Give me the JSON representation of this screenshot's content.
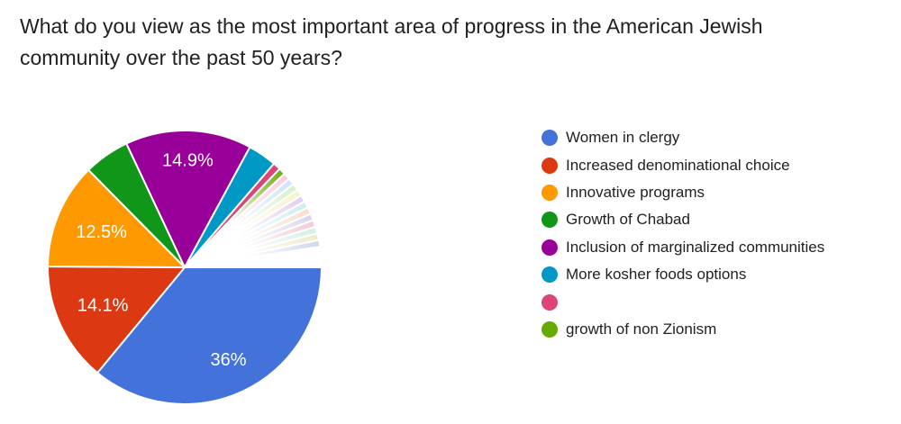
{
  "title": "What do you view as the most important area of progress in the American Jewish community over the past 50 years?",
  "chart_data": {
    "type": "pie",
    "title": "What do you view as the most important area of progress in the American Jewish community over the past 50 years?",
    "legend_position": "right",
    "start_angle_deg": 0,
    "direction": "clockwise",
    "percent_label_color": "#ffffff",
    "slices": [
      {
        "label": "Women in clergy",
        "pct": 36,
        "display": "36%",
        "color": "#4472DB",
        "label_r": 0.75
      },
      {
        "label": "Increased denominational choice",
        "pct": 14.1,
        "display": "14.1%",
        "color": "#DC3912",
        "label_r": 0.66
      },
      {
        "label": "Innovative programs",
        "pct": 12.5,
        "display": "12.5%",
        "color": "#FF9900",
        "label_r": 0.66
      },
      {
        "label": "Growth of Chabad",
        "pct": 5.4,
        "display": "",
        "color": "#109618",
        "label_r": 0.72
      },
      {
        "label": "Inclusion of marginalized communities",
        "pct": 14.9,
        "display": "14.9%",
        "color": "#990099",
        "label_r": 0.78
      },
      {
        "label": "More kosher foods options",
        "pct": 3.4,
        "display": "",
        "color": "#0099C6",
        "label_r": 0.72
      },
      {
        "label": "",
        "pct": 0.9,
        "display": "",
        "color": "#DD4477",
        "label_r": 0.72
      },
      {
        "label": "growth of non Zionism",
        "pct": 0.8,
        "display": "",
        "color": "#66AA00",
        "label_r": 0.72
      }
    ],
    "others": {
      "note": "additional single-response answers rendered as thin faint unlabeled slices",
      "pct_each": 0.8,
      "trailing_white_pct": 2.4,
      "colors": [
        "#f7c9da",
        "#cbe3f7",
        "#d4f0ca",
        "#f7f1c6",
        "#e3cbf0",
        "#c9edf0",
        "#f7dcc9",
        "#d7d4f0",
        "#f0cad4",
        "#d0f0e2",
        "#f0e8c9",
        "#cbd7f0"
      ]
    }
  },
  "legend": {
    "items": [
      {
        "label": "Women in clergy",
        "color": "#4472DB"
      },
      {
        "label": "Increased denominational choice",
        "color": "#DC3912"
      },
      {
        "label": "Innovative programs",
        "color": "#FF9900"
      },
      {
        "label": "Growth of Chabad",
        "color": "#109618"
      },
      {
        "label": "Inclusion of marginalized communities",
        "color": "#990099"
      },
      {
        "label": "More kosher foods options",
        "color": "#0099C6"
      },
      {
        "label": "",
        "color": "#DD4477"
      },
      {
        "label": "growth of non Zionism",
        "color": "#66AA00"
      }
    ]
  }
}
